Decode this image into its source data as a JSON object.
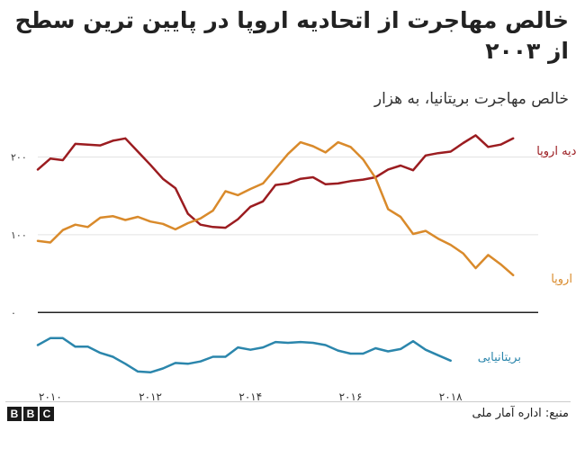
{
  "title": "خالص مهاجرت از اتحادیه اروپا در پایین ترین سطح از ۲۰۰۳",
  "subtitle": "خالص مهاجرت بریتانیا، به هزار",
  "source": "منبع: اداره آمار ملی",
  "logo_letters": [
    "B",
    "B",
    "C"
  ],
  "colors": {
    "non_eu": "#9b1c20",
    "eu": "#d98a2b",
    "british": "#2b86ac",
    "zero_line": "#222222",
    "grid": "#e3e3e3"
  },
  "chart_data": {
    "type": "line",
    "title": "خالص مهاجرت از اتحادیه اروپا در پایین ترین سطح از ۲۰۰۳",
    "subtitle": "خالص مهاجرت بریتانیا، به هزار",
    "xlabel": "",
    "ylabel": "",
    "xlim": [
      2009.75,
      2019.75
    ],
    "ylim": [
      -90,
      240
    ],
    "y_ticks": [
      0,
      100,
      200
    ],
    "y_tick_labels": [
      "۰",
      "۱۰۰",
      "۲۰۰"
    ],
    "x_ticks": [
      2010,
      2012,
      2014,
      2016,
      2018
    ],
    "x_tick_labels": [
      "۲۰۱۰",
      "۲۰۱۲",
      "۲۰۱۴",
      "۲۰۱۶",
      "۲۰۱۸"
    ],
    "grid": true,
    "legend": "inline labels at right end of each line",
    "x": [
      2009.75,
      2010.0,
      2010.25,
      2010.5,
      2010.75,
      2011.0,
      2011.25,
      2011.5,
      2011.75,
      2012.0,
      2012.25,
      2012.5,
      2012.75,
      2013.0,
      2013.25,
      2013.5,
      2013.75,
      2014.0,
      2014.25,
      2014.5,
      2014.75,
      2015.0,
      2015.25,
      2015.5,
      2015.75,
      2016.0,
      2016.25,
      2016.5,
      2016.75,
      2017.0,
      2017.25,
      2017.5,
      2017.75,
      2018.0,
      2018.25,
      2018.5,
      2018.75,
      2019.0,
      2019.25,
      2019.5,
      2019.75
    ],
    "series": [
      {
        "name": "خارج اتحادیه اروپا",
        "color_key": "non_eu",
        "values": [
          184,
          198,
          196,
          217,
          216,
          215,
          221,
          224,
          207,
          190,
          172,
          160,
          127,
          113,
          110,
          109,
          120,
          136,
          143,
          164,
          166,
          172,
          174,
          165,
          166,
          169,
          171,
          174,
          184,
          189,
          183,
          202,
          205,
          207,
          218,
          228,
          213,
          216,
          224,
          null,
          null
        ]
      },
      {
        "name": "اتحادیه اروپا",
        "color_key": "eu",
        "values": [
          92,
          90,
          106,
          113,
          110,
          122,
          124,
          119,
          123,
          117,
          114,
          107,
          115,
          121,
          131,
          156,
          151,
          159,
          166,
          185,
          204,
          219,
          214,
          206,
          219,
          213,
          197,
          173,
          133,
          123,
          101,
          105,
          95,
          87,
          76,
          57,
          74,
          62,
          48,
          null,
          null
        ]
      },
      {
        "name": "بریتانیایی",
        "color_key": "british",
        "values": [
          -42,
          -33,
          -33,
          -44,
          -44,
          -52,
          -57,
          -66,
          -76,
          -77,
          -72,
          -65,
          -66,
          -63,
          -57,
          -57,
          -45,
          -48,
          -45,
          -38,
          -39,
          -38,
          -39,
          -42,
          -49,
          -53,
          -53,
          -46,
          -50,
          -47,
          -37,
          -48,
          -55,
          -62,
          null,
          null,
          null,
          null,
          null,
          null,
          null
        ]
      }
    ]
  },
  "series_labels": {
    "non_eu": "خارج اتحادیه اروپا",
    "eu": "اتحادیه اروپا",
    "british": "بریتانیایی"
  }
}
